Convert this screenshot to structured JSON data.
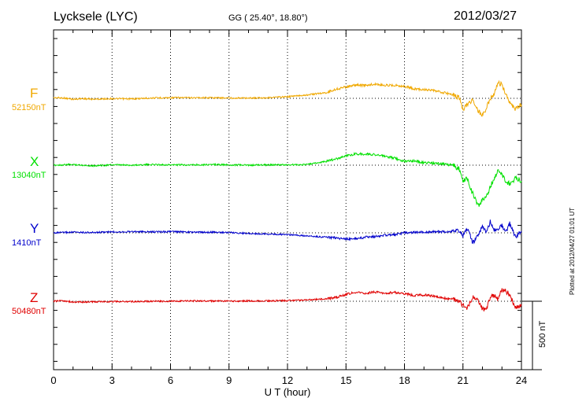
{
  "header": {
    "station": "Lycksele (LYC)",
    "coords": "GG ( 25.40°,  18.80°)",
    "date": "2012/03/27"
  },
  "plotted": "Plotted at 2012/04/27 01:01  UT",
  "scale_label": "500 nT",
  "chart_data": {
    "type": "line",
    "title": "Lycksele (LYC)",
    "xlabel": "U T (hour)",
    "ylabel": "",
    "xlim": [
      0,
      24
    ],
    "x_ticks": [
      "0",
      "3",
      "6",
      "9",
      "12",
      "15",
      "18",
      "21",
      "24"
    ],
    "grid": true,
    "scale_bar_nT": 500,
    "series": [
      {
        "name": "F",
        "baseline_label": "52150nT",
        "color": "#f0a800",
        "x": [
          0,
          0.5,
          1,
          1.5,
          2,
          3,
          4,
          5,
          6,
          7,
          8,
          9,
          10,
          11,
          12,
          13,
          14,
          14.5,
          15,
          15.5,
          16,
          16.5,
          17,
          17.5,
          18,
          18.5,
          19,
          19.5,
          20,
          20.5,
          20.8,
          21,
          21.2,
          21.5,
          21.8,
          22,
          22.2,
          22.4,
          22.6,
          22.8,
          23,
          23.2,
          23.4,
          23.7,
          24
        ],
        "values": [
          10,
          5,
          -15,
          -5,
          -15,
          -5,
          -10,
          5,
          10,
          10,
          10,
          5,
          5,
          10,
          25,
          55,
          90,
          145,
          180,
          210,
          205,
          225,
          205,
          210,
          190,
          150,
          140,
          120,
          90,
          60,
          10,
          -170,
          -110,
          -20,
          -210,
          -260,
          -160,
          0,
          60,
          240,
          220,
          50,
          -80,
          -170,
          -100
        ]
      },
      {
        "name": "X",
        "baseline_label": "13040nT",
        "color": "#00e000",
        "x": [
          0,
          1,
          2,
          3,
          4,
          5,
          6,
          7,
          8,
          9,
          10,
          11,
          12,
          13,
          14,
          14.5,
          15,
          15.5,
          16,
          16.5,
          17,
          17.5,
          18,
          18.5,
          19,
          19.5,
          20,
          20.5,
          20.8,
          21,
          21.2,
          21.5,
          21.8,
          22,
          22.2,
          22.4,
          22.6,
          22.8,
          23,
          23.2,
          23.4,
          23.7,
          24
        ],
        "values": [
          0,
          10,
          -10,
          5,
          0,
          10,
          5,
          5,
          10,
          5,
          0,
          5,
          5,
          10,
          60,
          100,
          150,
          180,
          175,
          170,
          140,
          110,
          60,
          70,
          40,
          30,
          20,
          0,
          -60,
          -250,
          -200,
          -450,
          -650,
          -550,
          -500,
          -350,
          -200,
          -100,
          -150,
          -250,
          -300,
          -200,
          -250
        ]
      },
      {
        "name": "Y",
        "baseline_label": "1410nT",
        "color": "#0000cc",
        "x": [
          0,
          1,
          2,
          3,
          4,
          5,
          6,
          7,
          8,
          9,
          10,
          11,
          12,
          13,
          14,
          14.5,
          15,
          15.5,
          16,
          16.5,
          17,
          17.5,
          18,
          18.5,
          19,
          19.5,
          20,
          20.5,
          20.8,
          21,
          21.2,
          21.5,
          21.8,
          22,
          22.2,
          22.4,
          22.6,
          22.8,
          23,
          23.2,
          23.4,
          23.7,
          24
        ],
        "values": [
          0,
          10,
          5,
          15,
          20,
          15,
          20,
          10,
          10,
          5,
          -10,
          -20,
          -30,
          -50,
          -70,
          -80,
          -100,
          -95,
          -70,
          -60,
          -40,
          -30,
          0,
          5,
          10,
          20,
          20,
          30,
          40,
          -50,
          80,
          -150,
          -50,
          100,
          0,
          180,
          40,
          60,
          120,
          0,
          150,
          -80,
          30
        ]
      },
      {
        "name": "Z",
        "baseline_label": "50480nT",
        "color": "#e00000",
        "x": [
          0,
          0.5,
          1,
          2,
          3,
          4,
          5,
          6,
          7,
          8,
          9,
          10,
          11,
          12,
          13,
          14,
          14.5,
          15,
          15.5,
          16,
          16.5,
          17,
          17.5,
          18,
          18.5,
          19,
          19.5,
          20,
          20.5,
          20.8,
          21,
          21.2,
          21.5,
          21.8,
          22,
          22.2,
          22.4,
          22.6,
          22.8,
          23,
          23.2,
          23.4,
          23.7,
          24
        ],
        "values": [
          0,
          10,
          -15,
          -10,
          -5,
          -5,
          0,
          0,
          5,
          5,
          0,
          5,
          5,
          10,
          20,
          40,
          60,
          110,
          140,
          130,
          145,
          125,
          140,
          120,
          90,
          100,
          80,
          50,
          40,
          0,
          -70,
          -110,
          60,
          0,
          -120,
          -130,
          60,
          100,
          30,
          180,
          160,
          100,
          -100,
          -70
        ]
      }
    ]
  }
}
